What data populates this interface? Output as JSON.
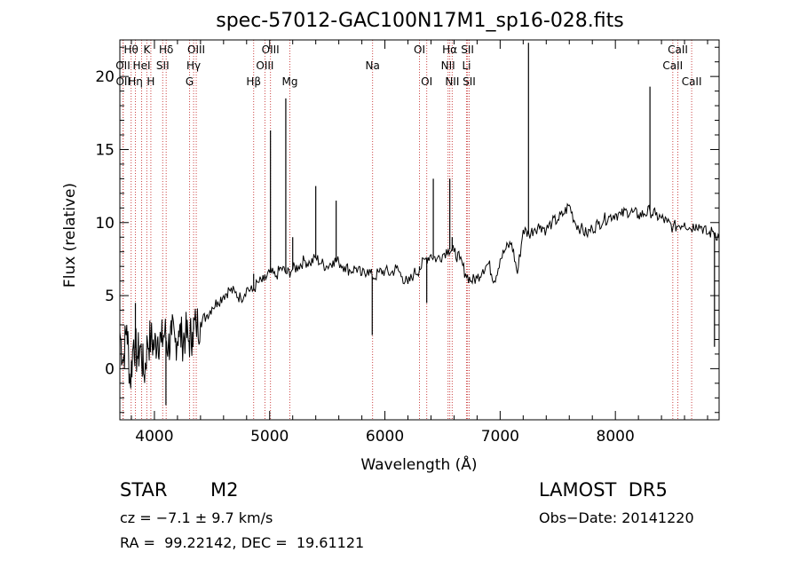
{
  "chart_data": {
    "type": "line",
    "title": "spec-57012-GAC100N17M1_sp16-028.fits",
    "xlabel": "Wavelength (Å)",
    "ylabel": "Flux (relative)",
    "xlim": [
      3700,
      8900
    ],
    "ylim": [
      -3.5,
      22.5
    ],
    "x_ticks": [
      4000,
      5000,
      6000,
      7000,
      8000
    ],
    "y_ticks": [
      0,
      5,
      10,
      15,
      20
    ],
    "grid": false,
    "line_color": "#000000",
    "marker_color": "#cc4444",
    "spectrum": {
      "x": [
        3700,
        3730,
        3760,
        3790,
        3820,
        3850,
        3880,
        3910,
        3940,
        3970,
        4000,
        4030,
        4060,
        4090,
        4120,
        4150,
        4180,
        4210,
        4240,
        4270,
        4300,
        4330,
        4360,
        4400,
        4450,
        4500,
        4550,
        4600,
        4650,
        4700,
        4750,
        4800,
        4850,
        4900,
        4950,
        5000,
        5050,
        5100,
        5150,
        5200,
        5250,
        5300,
        5350,
        5400,
        5450,
        5500,
        5550,
        5600,
        5650,
        5700,
        5750,
        5800,
        5850,
        5900,
        5950,
        6000,
        6050,
        6100,
        6150,
        6200,
        6250,
        6300,
        6350,
        6400,
        6450,
        6500,
        6550,
        6600,
        6650,
        6700,
        6750,
        6800,
        6850,
        6900,
        6950,
        7000,
        7050,
        7100,
        7150,
        7200,
        7250,
        7300,
        7350,
        7400,
        7450,
        7500,
        7550,
        7600,
        7650,
        7700,
        7750,
        7800,
        7850,
        7900,
        7950,
        8000,
        8050,
        8100,
        8150,
        8200,
        8250,
        8300,
        8350,
        8400,
        8450,
        8500,
        8550,
        8600,
        8650,
        8700,
        8750,
        8800,
        8850,
        8900
      ],
      "y": [
        2.5,
        0.5,
        3.0,
        -1.0,
        2.0,
        0.8,
        1.5,
        -0.5,
        1.8,
        2.0,
        1.5,
        2.2,
        1.8,
        2.5,
        1.5,
        2.3,
        1.8,
        2.6,
        2.0,
        2.4,
        1.9,
        2.5,
        3.0,
        3.2,
        3.6,
        4.2,
        4.6,
        5.0,
        5.4,
        5.2,
        4.8,
        5.5,
        5.3,
        5.9,
        6.0,
        6.6,
        6.3,
        6.9,
        6.5,
        6.8,
        7.0,
        7.4,
        7.2,
        7.6,
        7.2,
        7.0,
        7.4,
        7.3,
        7.0,
        6.7,
        6.9,
        6.4,
        6.8,
        6.2,
        6.6,
        6.7,
        6.5,
        6.9,
        6.3,
        5.8,
        6.5,
        6.8,
        7.5,
        7.8,
        7.5,
        7.8,
        8.2,
        8.0,
        7.5,
        6.5,
        6.0,
        6.2,
        6.8,
        7.2,
        6.0,
        7.5,
        8.2,
        8.6,
        6.5,
        9.5,
        9.2,
        9.6,
        9.8,
        9.5,
        10.0,
        10.2,
        10.6,
        11.2,
        10.0,
        9.6,
        9.2,
        9.6,
        9.9,
        10.2,
        10.4,
        10.6,
        10.5,
        10.8,
        10.7,
        10.5,
        10.6,
        10.8,
        10.5,
        10.3,
        10.0,
        9.7,
        9.8,
        10.0,
        9.6,
        9.9,
        9.7,
        9.2,
        9.4,
        9.0
      ]
    },
    "peaks": {
      "x": [
        3835,
        4100,
        4340,
        4861,
        5007,
        5140,
        5200,
        5400,
        5577,
        5890,
        6300,
        6363,
        6420,
        6563,
        6584,
        7246,
        8300,
        8860
      ],
      "y": [
        4.5,
        -2.5,
        3.5,
        6.5,
        16.3,
        18.5,
        9.0,
        12.5,
        11.5,
        2.3,
        7.0,
        4.5,
        13.0,
        13.0,
        9.0,
        22.3,
        19.3,
        1.5
      ]
    },
    "lines": [
      {
        "name": "Hθ",
        "wavelength": 3798,
        "row": 0
      },
      {
        "name": "OII",
        "wavelength": 3727,
        "row": 1
      },
      {
        "name": "OII",
        "wavelength": 3729,
        "row": 2
      },
      {
        "name": "Hη",
        "wavelength": 3835,
        "row": 2
      },
      {
        "name": "K",
        "wavelength": 3934,
        "row": 0
      },
      {
        "name": "HeI",
        "wavelength": 3889,
        "row": 1
      },
      {
        "name": "H",
        "wavelength": 3969,
        "row": 2
      },
      {
        "name": "Hδ",
        "wavelength": 4102,
        "row": 0
      },
      {
        "name": "SII",
        "wavelength": 4072,
        "row": 1
      },
      {
        "name": "OIII",
        "wavelength": 4363,
        "row": 0
      },
      {
        "name": "Hγ",
        "wavelength": 4340,
        "row": 1
      },
      {
        "name": "G",
        "wavelength": 4305,
        "row": 2
      },
      {
        "name": "Hβ",
        "wavelength": 4861,
        "row": 2
      },
      {
        "name": "OIII",
        "wavelength": 5007,
        "row": 0
      },
      {
        "name": "OIII",
        "wavelength": 4959,
        "row": 1
      },
      {
        "name": "Mg",
        "wavelength": 5175,
        "row": 2
      },
      {
        "name": "Na",
        "wavelength": 5893,
        "row": 1
      },
      {
        "name": "OI",
        "wavelength": 6300,
        "row": 0
      },
      {
        "name": "OI",
        "wavelength": 6363,
        "row": 2
      },
      {
        "name": "Hα",
        "wavelength": 6563,
        "row": 0
      },
      {
        "name": "NII",
        "wavelength": 6548,
        "row": 1
      },
      {
        "name": "NII",
        "wavelength": 6584,
        "row": 2
      },
      {
        "name": "SII",
        "wavelength": 6717,
        "row": 0
      },
      {
        "name": "Li",
        "wavelength": 6708,
        "row": 1
      },
      {
        "name": "SII",
        "wavelength": 6731,
        "row": 2
      },
      {
        "name": "CaII",
        "wavelength": 8542,
        "row": 0
      },
      {
        "name": "CaII",
        "wavelength": 8498,
        "row": 1
      },
      {
        "name": "CaII",
        "wavelength": 8662,
        "row": 2
      }
    ]
  },
  "info": {
    "class_label": "STAR",
    "subclass": "M2",
    "survey": "LAMOST  DR5",
    "cz_text": "cz = −7.1 ± 9.7 km/s",
    "obs_date": "Obs−Date: 20141220",
    "coords": "RA =  99.22142, DEC =  19.61121"
  }
}
